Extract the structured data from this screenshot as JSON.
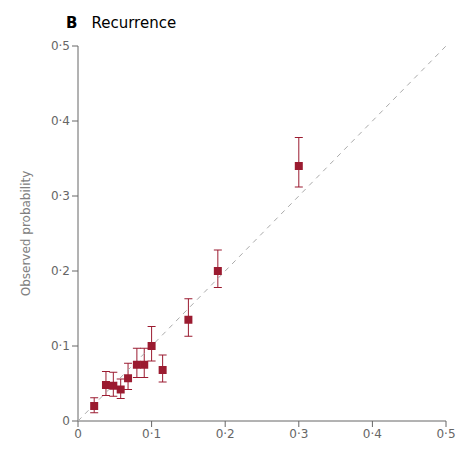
{
  "chart_data": {
    "type": "scatter",
    "title": "B",
    "subtitle": "Recurrence",
    "ylabel": "Observed probability",
    "xlim": [
      0,
      0.5
    ],
    "ylim": [
      0,
      0.5
    ],
    "xticks": [
      0,
      {
        "value": 0.1,
        "label": "0·1"
      },
      {
        "value": 0.2,
        "label": "0·2"
      },
      {
        "value": 0.3,
        "label": "0·3"
      },
      {
        "value": 0.4,
        "label": "0·4"
      },
      {
        "value": 0.5,
        "label": "0·5"
      }
    ],
    "yticks": [
      0,
      {
        "value": 0.1,
        "label": "0·1"
      },
      {
        "value": 0.2,
        "label": "0·2"
      },
      {
        "value": 0.3,
        "label": "0·3"
      },
      {
        "value": 0.4,
        "label": "0·4"
      },
      {
        "value": 0.5,
        "label": "0·5"
      }
    ],
    "grid": false,
    "series": [
      {
        "type": "line",
        "line_style": "dashed",
        "color": "#aaaaaa",
        "x": [
          0,
          0.5
        ],
        "values": [
          0,
          0.5
        ]
      },
      {
        "type": "scatter",
        "marker": "square",
        "color": "#9b1b30",
        "x": [
          0.022,
          0.038,
          0.048,
          0.058,
          0.068,
          0.08,
          0.09,
          0.1,
          0.115,
          0.15,
          0.19,
          0.3
        ],
        "values": [
          0.02,
          0.048,
          0.047,
          0.042,
          0.057,
          0.075,
          0.075,
          0.1,
          0.068,
          0.135,
          0.2,
          0.34
        ],
        "error_low": [
          0.009,
          0.014,
          0.014,
          0.012,
          0.015,
          0.017,
          0.017,
          0.02,
          0.016,
          0.022,
          0.022,
          0.028
        ],
        "error_high": [
          0.011,
          0.018,
          0.018,
          0.014,
          0.02,
          0.022,
          0.022,
          0.026,
          0.02,
          0.028,
          0.028,
          0.038
        ]
      }
    ]
  }
}
